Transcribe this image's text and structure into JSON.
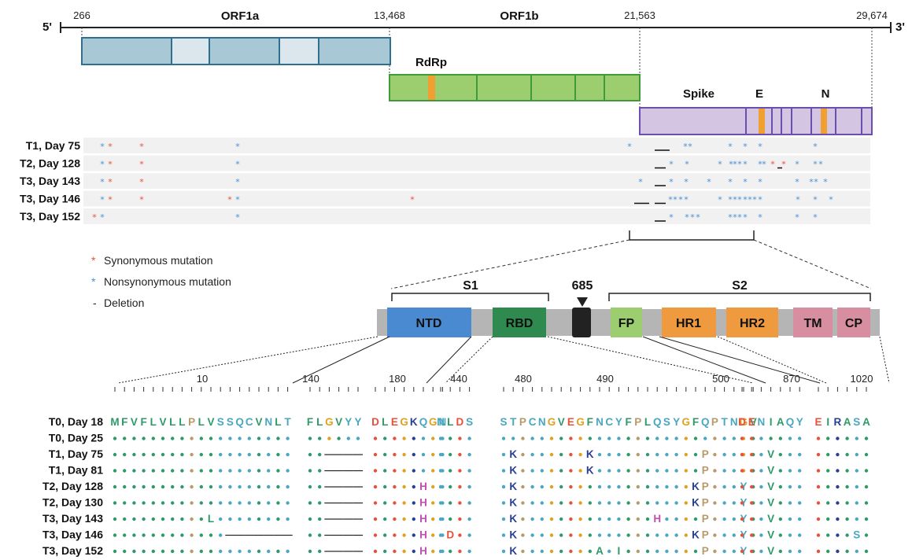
{
  "genome": {
    "five_prime": "5'",
    "three_prime": "3'",
    "positions": [
      "266",
      "13,468",
      "21,563",
      "29,674"
    ],
    "orf1a": "ORF1a",
    "orf1b": "ORF1b",
    "rdrp": "RdRp",
    "spike": "Spike",
    "e": "E",
    "n": "N"
  },
  "tracks": [
    {
      "label": "T1, Day 75",
      "syn": [
        140,
        180
      ],
      "non": [
        130,
        302,
        800,
        871,
        877,
        928,
        947,
        966,
        1036
      ],
      "dels": [
        [
          832,
          851
        ]
      ]
    },
    {
      "label": "T2, Day 128",
      "syn": [
        140,
        180,
        982,
        996
      ],
      "non": [
        130,
        302,
        853,
        873,
        915,
        929,
        934,
        940,
        947,
        966,
        971,
        1013,
        1036,
        1043
      ],
      "dels": [
        [
          832,
          846
        ],
        [
          988,
          994
        ]
      ]
    },
    {
      "label": "T3, Day 143",
      "syn": [
        140,
        180
      ],
      "non": [
        130,
        302,
        814,
        853,
        872,
        901,
        928,
        947,
        966,
        1013,
        1031,
        1037,
        1049
      ],
      "dels": [
        [
          832,
          846
        ]
      ]
    },
    {
      "label": "T3, Day 146",
      "syn": [
        140,
        180,
        292,
        524
      ],
      "non": [
        130,
        302,
        852,
        858,
        865,
        872,
        915,
        928,
        934,
        940,
        947,
        953,
        959,
        966,
        1014,
        1036,
        1056
      ],
      "dels": [
        [
          806,
          825
        ],
        [
          832,
          846
        ]
      ]
    },
    {
      "label": "T3, Day 152",
      "syn": [
        120
      ],
      "non": [
        130,
        302,
        853,
        873,
        880,
        887,
        928,
        934,
        940,
        947,
        966,
        1013,
        1036
      ],
      "dels": [
        [
          832,
          846
        ]
      ]
    }
  ],
  "legend": {
    "syn": "Synonymous mutation",
    "non": "Nonsynonymous mutation",
    "del": "Deletion",
    "star": "*",
    "dash": "-"
  },
  "spike_domains": {
    "s1": "S1",
    "s2": "S2",
    "site": "685",
    "ntd": "NTD",
    "rbd": "RBD",
    "fp": "FP",
    "hr1": "HR1",
    "hr2": "HR2",
    "tm": "TM",
    "cp": "CP"
  },
  "scale": [
    "10",
    "140",
    "180",
    "440",
    "480",
    "490",
    "500",
    "870",
    "1020"
  ],
  "alignment": {
    "ref_label": "T0, Day 18",
    "groups": [
      {
        "seq": "MFVFLVLLPLVSSQCVNLT"
      },
      {
        "seq": "FLGVYY"
      },
      {
        "seq": "DLEGKQGN"
      },
      {
        "seq": "NLDS"
      },
      {
        "seq": "STPCNGVEGFNCYFPLQSYGFQPTNGV"
      },
      {
        "seq": "DENIAQY"
      },
      {
        "seq": "EIRASA"
      }
    ],
    "rows": [
      {
        "label": "T0, Day 25",
        "muts": []
      },
      {
        "label": "T1, Day 75",
        "muts": [
          {
            "g": 1,
            "i": 2,
            "del": 4
          },
          {
            "g": 4,
            "i": 1,
            "c": "K"
          },
          {
            "g": 4,
            "i": 9,
            "c": "K"
          },
          {
            "g": 4,
            "i": 21,
            "c": "P"
          },
          {
            "g": 5,
            "i": 3,
            "c": "V"
          }
        ]
      },
      {
        "label": "T1, Day 81",
        "muts": [
          {
            "g": 1,
            "i": 2,
            "del": 4
          },
          {
            "g": 4,
            "i": 1,
            "c": "K"
          },
          {
            "g": 4,
            "i": 9,
            "c": "K"
          },
          {
            "g": 4,
            "i": 21,
            "c": "P"
          },
          {
            "g": 5,
            "i": 3,
            "c": "V"
          }
        ]
      },
      {
        "label": "T2, Day 128",
        "muts": [
          {
            "g": 1,
            "i": 2,
            "del": 4
          },
          {
            "g": 2,
            "i": 5,
            "c": "H"
          },
          {
            "g": 4,
            "i": 1,
            "c": "K"
          },
          {
            "g": 4,
            "i": 20,
            "c": "K"
          },
          {
            "g": 4,
            "i": 21,
            "c": "P"
          },
          {
            "g": 4,
            "i": 25,
            "c": "Y"
          },
          {
            "g": 5,
            "i": 3,
            "c": "V"
          }
        ]
      },
      {
        "label": "T2, Day 130",
        "muts": [
          {
            "g": 1,
            "i": 2,
            "del": 4
          },
          {
            "g": 2,
            "i": 5,
            "c": "H"
          },
          {
            "g": 4,
            "i": 1,
            "c": "K"
          },
          {
            "g": 4,
            "i": 20,
            "c": "K"
          },
          {
            "g": 4,
            "i": 21,
            "c": "P"
          },
          {
            "g": 4,
            "i": 25,
            "c": "Y"
          },
          {
            "g": 5,
            "i": 3,
            "c": "V"
          }
        ]
      },
      {
        "label": "T3, Day 143",
        "muts": [
          {
            "g": 0,
            "i": 10,
            "c": "L"
          },
          {
            "g": 1,
            "i": 2,
            "del": 4
          },
          {
            "g": 2,
            "i": 5,
            "c": "H"
          },
          {
            "g": 4,
            "i": 1,
            "c": "K"
          },
          {
            "g": 4,
            "i": 16,
            "c": "H"
          },
          {
            "g": 4,
            "i": 21,
            "c": "P"
          },
          {
            "g": 4,
            "i": 25,
            "c": "Y"
          },
          {
            "g": 5,
            "i": 3,
            "c": "V"
          }
        ]
      },
      {
        "label": "T3, Day 146",
        "muts": [
          {
            "g": 0,
            "i": 12,
            "del": 7
          },
          {
            "g": 1,
            "i": 2,
            "del": 4
          },
          {
            "g": 2,
            "i": 5,
            "c": "H"
          },
          {
            "g": 3,
            "i": 1,
            "c": "D"
          },
          {
            "g": 4,
            "i": 1,
            "c": "K"
          },
          {
            "g": 4,
            "i": 20,
            "c": "K"
          },
          {
            "g": 4,
            "i": 21,
            "c": "P"
          },
          {
            "g": 4,
            "i": 25,
            "c": "Y"
          },
          {
            "g": 5,
            "i": 3,
            "c": "V"
          },
          {
            "g": 6,
            "i": 4,
            "c": "S"
          }
        ]
      },
      {
        "label": "T3, Day 152",
        "muts": [
          {
            "g": 1,
            "i": 2,
            "del": 4
          },
          {
            "g": 2,
            "i": 5,
            "c": "H"
          },
          {
            "g": 4,
            "i": 1,
            "c": "K"
          },
          {
            "g": 4,
            "i": 10,
            "c": "A"
          },
          {
            "g": 4,
            "i": 12,
            "c": "I"
          },
          {
            "g": 4,
            "i": 21,
            "c": "P"
          },
          {
            "g": 4,
            "i": 25,
            "c": "Y"
          },
          {
            "g": 5,
            "i": 3,
            "c": "V"
          }
        ]
      }
    ],
    "colors": {
      "hydrophobic": "#2e9a6a",
      "polar": "#4aa7c0",
      "acidic": "#e8503a",
      "basic": "#2a3f8f",
      "special": "#b89a6a",
      "gly": "#e0a020",
      "pink": "#c44fb0"
    }
  }
}
